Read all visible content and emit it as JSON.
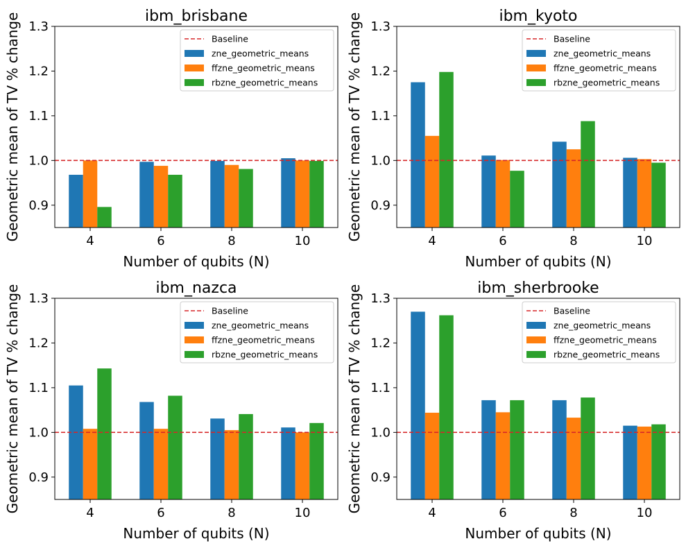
{
  "colors": {
    "baseline": "#d62728",
    "zne_geometric_means": "#1f77b4",
    "ffzne_geometric_means": "#ff7f0e",
    "rbzne_geometric_means": "#2ca02c"
  },
  "chart_data": [
    {
      "type": "bar",
      "title": "ibm_brisbane",
      "xlabel": "Number of qubits (N)",
      "ylabel": "Geometric mean of TV % change",
      "categories": [
        "4",
        "6",
        "8",
        "10"
      ],
      "ylim": [
        0.85,
        1.3
      ],
      "yticks": [
        "0.9",
        "1.0",
        "1.1",
        "1.2",
        "1.3"
      ],
      "baseline": {
        "name": "Baseline",
        "value": 1.0
      },
      "legend_position": "top-right",
      "grid": false,
      "series": [
        {
          "name": "zne_geometric_means",
          "values": [
            0.968,
            0.997,
            0.999,
            1.005
          ]
        },
        {
          "name": "ffzne_geometric_means",
          "values": [
            1.0,
            0.988,
            0.99,
            1.0
          ]
        },
        {
          "name": "rbzne_geometric_means",
          "values": [
            0.896,
            0.968,
            0.981,
            0.999
          ]
        }
      ]
    },
    {
      "type": "bar",
      "title": "ibm_kyoto",
      "xlabel": "Number of qubits (N)",
      "ylabel": "Geometric mean of TV % change",
      "categories": [
        "4",
        "6",
        "8",
        "10"
      ],
      "ylim": [
        0.85,
        1.3
      ],
      "yticks": [
        "0.9",
        "1.0",
        "1.1",
        "1.2",
        "1.3"
      ],
      "baseline": {
        "name": "Baseline",
        "value": 1.0
      },
      "legend_position": "top-right",
      "grid": false,
      "series": [
        {
          "name": "zne_geometric_means",
          "values": [
            1.175,
            1.011,
            1.042,
            1.006
          ]
        },
        {
          "name": "ffzne_geometric_means",
          "values": [
            1.055,
            1.001,
            1.025,
            1.003
          ]
        },
        {
          "name": "rbzne_geometric_means",
          "values": [
            1.198,
            0.977,
            1.088,
            0.995
          ]
        }
      ]
    },
    {
      "type": "bar",
      "title": "ibm_nazca",
      "xlabel": "Number of qubits (N)",
      "ylabel": "Geometric mean of TV % change",
      "categories": [
        "4",
        "6",
        "8",
        "10"
      ],
      "ylim": [
        0.85,
        1.3
      ],
      "yticks": [
        "0.9",
        "1.0",
        "1.1",
        "1.2",
        "1.3"
      ],
      "baseline": {
        "name": "Baseline",
        "value": 1.0
      },
      "legend_position": "top-right",
      "grid": false,
      "series": [
        {
          "name": "zne_geometric_means",
          "values": [
            1.105,
            1.068,
            1.031,
            1.011
          ]
        },
        {
          "name": "ffzne_geometric_means",
          "values": [
            1.008,
            1.008,
            1.005,
            1.0
          ]
        },
        {
          "name": "rbzne_geometric_means",
          "values": [
            1.143,
            1.082,
            1.041,
            1.021
          ]
        }
      ]
    },
    {
      "type": "bar",
      "title": "ibm_sherbrooke",
      "xlabel": "Number of qubits (N)",
      "ylabel": "Geometric mean of TV % change",
      "categories": [
        "4",
        "6",
        "8",
        "10"
      ],
      "ylim": [
        0.85,
        1.3
      ],
      "yticks": [
        "0.9",
        "1.0",
        "1.1",
        "1.2",
        "1.3"
      ],
      "baseline": {
        "name": "Baseline",
        "value": 1.0
      },
      "legend_position": "top-right",
      "grid": false,
      "series": [
        {
          "name": "zne_geometric_means",
          "values": [
            1.27,
            1.072,
            1.072,
            1.015
          ]
        },
        {
          "name": "ffzne_geometric_means",
          "values": [
            1.044,
            1.045,
            1.033,
            1.013
          ]
        },
        {
          "name": "rbzne_geometric_means",
          "values": [
            1.262,
            1.072,
            1.078,
            1.018
          ]
        }
      ]
    }
  ]
}
